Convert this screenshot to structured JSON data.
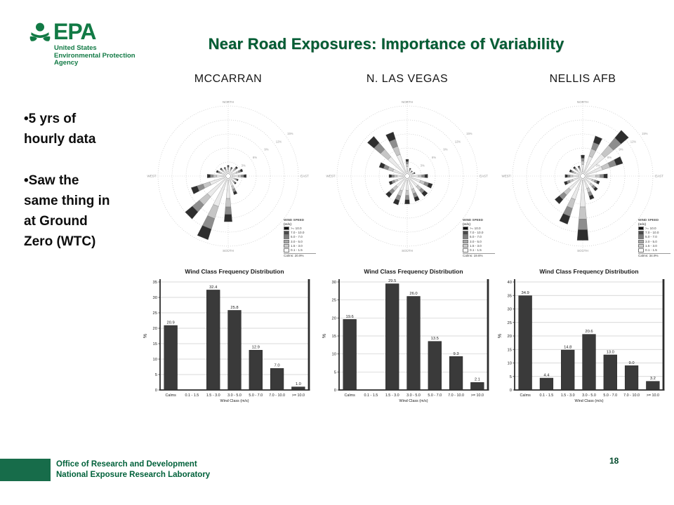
{
  "slide": {
    "title": "Near Road Exposures: Importance of Variability",
    "page_number": "18",
    "bullets": [
      {
        "lines": [
          "•5 yrs of",
          "hourly data"
        ]
      },
      {
        "lines": [
          "•Saw the",
          "same thing in",
          "at Ground",
          "Zero (WTC)"
        ]
      }
    ]
  },
  "logo": {
    "wordmark": "EPA",
    "tagline_lines": [
      "United States",
      "Environmental Protection",
      "Agency"
    ]
  },
  "footer": {
    "lines": [
      "Office of Research and Development",
      "National Exposure Research Laboratory"
    ]
  },
  "colors": {
    "brand_green": "#127a45",
    "title_green": "#005c33",
    "footer_bar_green": "#176c4a",
    "bar_fill": "#3a3a3a",
    "grid_gray": "#cccccc",
    "rose_ring_gray": "#bdbdbd"
  },
  "rose_common": {
    "direction_axis_labels": [
      "NORTH",
      "EAST",
      "SOUTH",
      "WEST"
    ],
    "ring_pct_labels": [
      "3%",
      "6%",
      "9%",
      "12%",
      "15%"
    ],
    "ring_max_pct": 15,
    "petal_segment_fractions": [
      0.45,
      0.2,
      0.175,
      0.175
    ],
    "petal_segment_colors": [
      "#eaeaea",
      "#c6c6c6",
      "#8d8d8d",
      "#2e2e2e"
    ],
    "legend": {
      "title_lines": [
        "WIND SPEED",
        "(m/s)"
      ],
      "classes": [
        ">= 10.0",
        "7.0 - 10.0",
        "5.0 - 7.0",
        "3.0 - 5.0",
        "1.5 - 3.0",
        "0.1 - 1.5"
      ],
      "swatch_colors": [
        "#0d0d0d",
        "#4a4a4a",
        "#7d7d7d",
        "#a8a8a8",
        "#cfcfcf",
        "#ffffff"
      ]
    }
  },
  "chart_data": [
    {
      "type": "wind-rose",
      "station": "MCCARRAN",
      "directions": [
        "N",
        "NNE",
        "NE",
        "ENE",
        "E",
        "ESE",
        "SE",
        "SSE",
        "S",
        "SSW",
        "SW",
        "WSW",
        "W",
        "WNW",
        "NW",
        "NNW"
      ],
      "petal_pct": [
        2.3,
        2.0,
        2.7,
        3.3,
        3.9,
        2.3,
        2.3,
        4.2,
        9.8,
        14.3,
        12.0,
        8.3,
        4.5,
        2.7,
        2.3,
        2.0
      ],
      "calms_label": "Calms: 20.9%"
    },
    {
      "type": "wind-rose",
      "station": "N. LAS VEGAS",
      "directions": [
        "N",
        "NNE",
        "NE",
        "ENE",
        "E",
        "ESE",
        "SE",
        "SSE",
        "S",
        "SSW",
        "SW",
        "WSW",
        "W",
        "WNW",
        "NW",
        "NNW"
      ],
      "petal_pct": [
        3.6,
        1.8,
        1.5,
        1.8,
        4.4,
        5.7,
        5.7,
        5.7,
        6.0,
        6.5,
        6.0,
        4.1,
        3.9,
        6.3,
        11.1,
        9.9
      ],
      "calms_label": "Calms: 19.6%"
    },
    {
      "type": "wind-rose",
      "station": "NELLIS AFB",
      "directions": [
        "N",
        "NNE",
        "NE",
        "ENE",
        "E",
        "ESE",
        "SE",
        "SSE",
        "S",
        "SSW",
        "SW",
        "WSW",
        "W",
        "WNW",
        "NW",
        "NNW"
      ],
      "petal_pct": [
        4.5,
        9.0,
        12.8,
        9.0,
        5.3,
        3.8,
        4.2,
        5.3,
        13.8,
        10.8,
        7.8,
        4.2,
        3.8,
        3.0,
        2.7,
        2.3
      ],
      "calms_label": "Calms: 34.9%"
    },
    {
      "type": "bar",
      "station": "MCCARRAN",
      "title": "Wind Class Frequency Distribution",
      "categories": [
        "Calms",
        "0.1 - 1.5",
        "1.5 - 3.0",
        "3.0 - 5.0",
        "5.0 - 7.0",
        "7.0 - 10.0",
        ">= 10.0"
      ],
      "values": [
        20.9,
        0,
        32.4,
        25.8,
        12.9,
        7.0,
        1.0
      ],
      "xlabel": "Wind Class (m/s)",
      "ylabel": "%",
      "ylim": [
        0,
        35
      ],
      "ytick_step": 5,
      "grid": true
    },
    {
      "type": "bar",
      "station": "N. LAS VEGAS",
      "title": "Wind Class Frequency Distribution",
      "categories": [
        "Calms",
        "0.1 - 1.5",
        "1.5 - 3.0",
        "3.0 - 5.0",
        "5.0 - 7.0",
        "7.0 - 10.0",
        ">= 10.0"
      ],
      "values": [
        19.6,
        0,
        29.5,
        26.0,
        13.5,
        9.3,
        2.1
      ],
      "xlabel": "Wind Class (m/s)",
      "ylabel": "%",
      "ylim": [
        0,
        30
      ],
      "ytick_step": 5,
      "grid": true
    },
    {
      "type": "bar",
      "station": "NELLIS AFB",
      "title": "Wind Class Frequency Distribution",
      "categories": [
        "Calms",
        "0.1 - 1.5",
        "1.5 - 3.0",
        "3.0 - 5.0",
        "5.0 - 7.0",
        "7.0 - 10.0",
        ">= 10.0"
      ],
      "values": [
        34.9,
        4.4,
        14.8,
        20.6,
        13.0,
        9.0,
        3.2
      ],
      "xlabel": "Wind Class (m/s)",
      "ylabel": "%",
      "ylim": [
        0,
        40
      ],
      "ytick_step": 5,
      "grid": true
    }
  ]
}
